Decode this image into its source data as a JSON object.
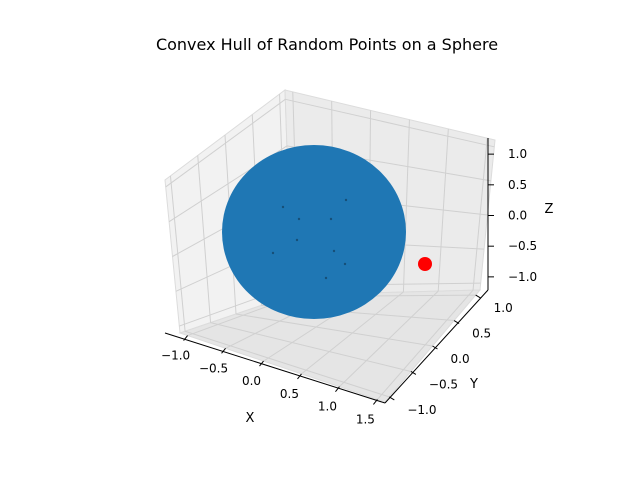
{
  "chart_data": {
    "type": "scatter",
    "projection": "3d",
    "title": "Convex Hull of Random Points on a Sphere",
    "xlabel": "X",
    "ylabel": "Y",
    "zlabel": "Z",
    "xticks": [
      "−1.0",
      "−0.5",
      "0.0",
      "0.5",
      "1.0",
      "1.5"
    ],
    "yticks": [
      "−1.0",
      "−0.5",
      "0.0",
      "0.5",
      "1.0"
    ],
    "zticks": [
      "−1.0",
      "−0.5",
      "0.0",
      "0.5",
      "1.0"
    ],
    "xlim": [
      -1.1,
      1.6
    ],
    "ylim": [
      -1.1,
      1.1
    ],
    "zlim": [
      -1.1,
      1.1
    ],
    "grid": true,
    "series": [
      {
        "kind": "surface",
        "shape": "sphere",
        "center": [
          0,
          0,
          0
        ],
        "radius": 1,
        "color": "#1f77b4"
      },
      {
        "kind": "point",
        "x": 1.5,
        "y": 0.0,
        "z": 0.0,
        "color": "#ff0000"
      }
    ]
  }
}
